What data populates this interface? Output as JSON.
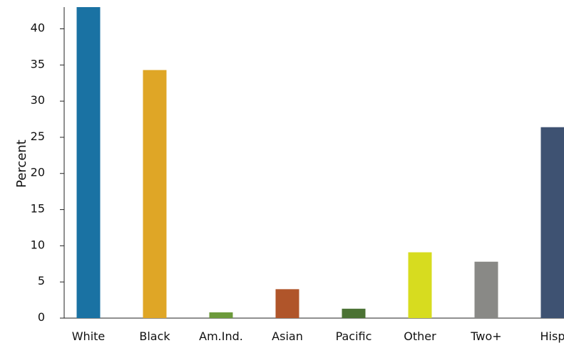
{
  "chart_data": {
    "type": "bar",
    "title": "",
    "xlabel": "",
    "ylabel": "Percent",
    "categories": [
      "White",
      "Black",
      "Am.Ind.",
      "Asian",
      "Pacific",
      "Other",
      "Two+",
      "Hisp"
    ],
    "values": [
      43.0,
      34.3,
      0.8,
      4.0,
      1.3,
      9.1,
      7.8,
      26.4
    ],
    "colors": [
      "#1a72a3",
      "#dfa626",
      "#6c9a3b",
      "#b0552a",
      "#4b7234",
      "#d7dc1f",
      "#898986",
      "#3e5272"
    ],
    "ylim": [
      0,
      43
    ],
    "yticks": [
      0,
      5,
      10,
      15,
      20,
      25,
      30,
      35,
      40
    ],
    "grid": false,
    "legend": "none"
  }
}
